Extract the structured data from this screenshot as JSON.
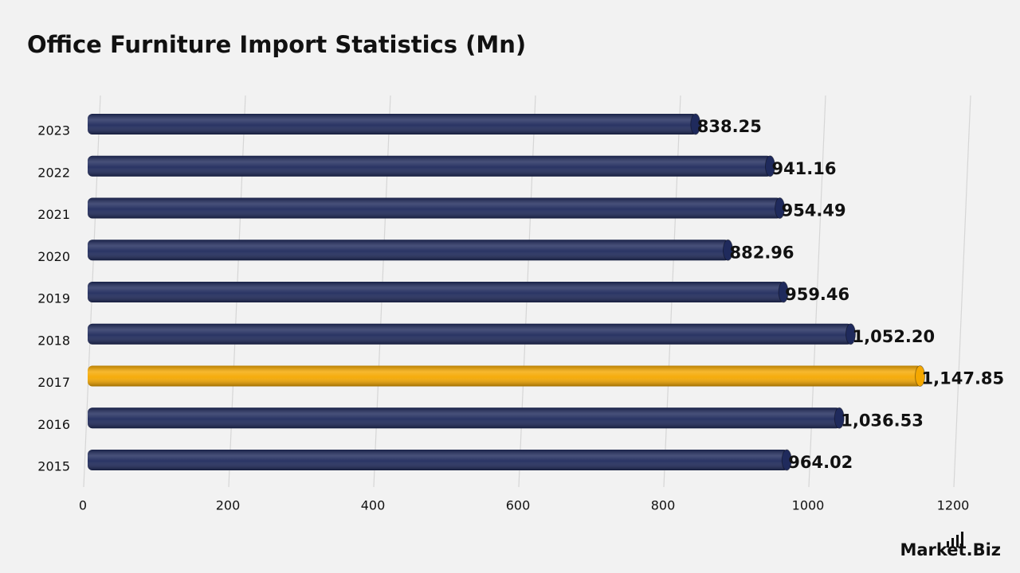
{
  "chart_data": {
    "type": "bar",
    "orientation": "horizontal",
    "title": "Office Furniture Import Statistics (Mn)",
    "categories": [
      "2023",
      "2022",
      "2021",
      "2020",
      "2019",
      "2018",
      "2017",
      "2016",
      "2015"
    ],
    "values": [
      838.25,
      941.16,
      954.49,
      882.96,
      959.46,
      1052.2,
      1147.85,
      1036.53,
      964.02
    ],
    "value_labels": [
      "838.25",
      "941.16",
      "954.49",
      "882.96",
      "959.46",
      "1,052.20",
      "1,147.85",
      "1,036.53",
      "964.02"
    ],
    "colors": [
      "#1f2a5c",
      "#1f2a5c",
      "#1f2a5c",
      "#1f2a5c",
      "#1f2a5c",
      "#1f2a5c",
      "#f5a800",
      "#1f2a5c",
      "#1f2a5c"
    ],
    "xlim": [
      0,
      1200
    ],
    "xticks": [
      0,
      200,
      400,
      600,
      800,
      1000,
      1200
    ],
    "grid": true
  },
  "watermark": "Market.Biz"
}
